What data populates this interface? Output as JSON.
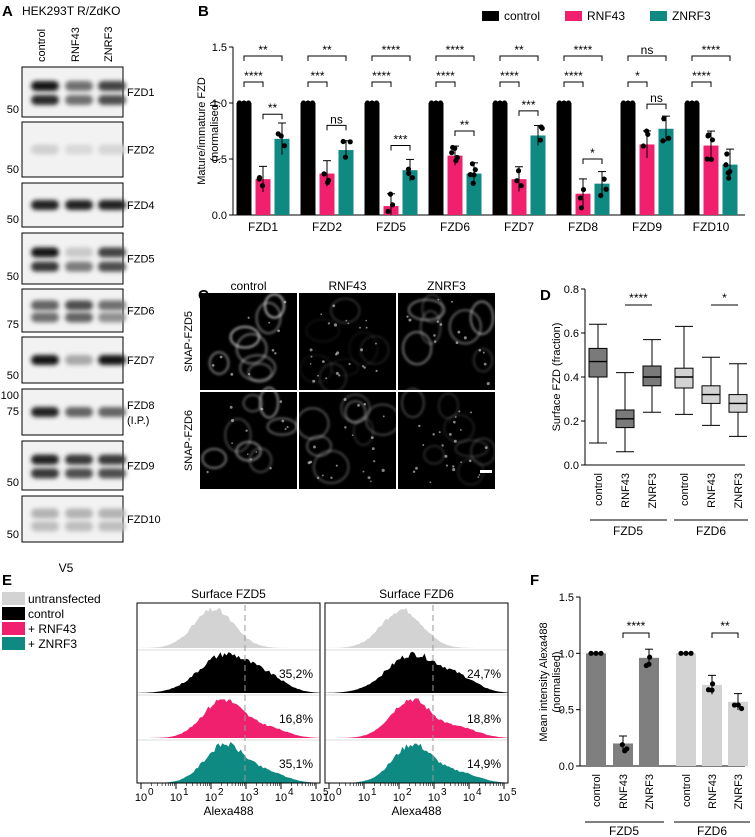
{
  "panel_letters": {
    "a": "A",
    "b": "B",
    "c": "C",
    "d": "D",
    "e": "E",
    "f": "F"
  },
  "panel_a": {
    "title": "HEK293T R/ZdKO",
    "lanes": [
      "control",
      "RNF43",
      "ZNRF3"
    ],
    "bottom_label": "V5",
    "blots": [
      {
        "label": "FZD1",
        "markers": [
          "50"
        ]
      },
      {
        "label": "FZD2",
        "markers": [
          "50"
        ]
      },
      {
        "label": "FZD4",
        "markers": [
          "50"
        ]
      },
      {
        "label": "FZD5",
        "markers": [
          "50"
        ]
      },
      {
        "label": "FZD6",
        "markers": [
          "75"
        ]
      },
      {
        "label": "FZD7",
        "markers": [
          "50"
        ]
      },
      {
        "label": "FZD8",
        "label2": "(I.P.)",
        "markers": [
          "100",
          "75"
        ]
      },
      {
        "label": "FZD9",
        "markers": [
          "50"
        ]
      },
      {
        "label": "FZD10",
        "markers": [
          "50"
        ]
      }
    ]
  },
  "chart_data": [
    {
      "panel": "B",
      "type": "bar",
      "ylabel": "Mature/immature FZD\n(normalised)",
      "ylim": [
        0,
        1.5
      ],
      "yticks": [
        "0.0",
        "0.5",
        "1.0",
        "1.5"
      ],
      "categories": [
        "FZD1",
        "FZD2",
        "FZD5",
        "FZD6",
        "FZD7",
        "FZD8",
        "FZD9",
        "FZD10"
      ],
      "series": [
        {
          "name": "control",
          "color": "#000000",
          "values": [
            1,
            1,
            1,
            1,
            1,
            1,
            1,
            1
          ]
        },
        {
          "name": "RNF43",
          "color": "#f0206e",
          "values": [
            0.32,
            0.37,
            0.08,
            0.53,
            0.32,
            0.19,
            0.63,
            0.62
          ]
        },
        {
          "name": "ZNRF3",
          "color": "#0f8a83",
          "values": [
            0.68,
            0.58,
            0.4,
            0.37,
            0.71,
            0.28,
            0.77,
            0.45
          ]
        }
      ],
      "legend": "top",
      "significance": [
        {
          "top": "**",
          "low": "****",
          "right": "**"
        },
        {
          "top": "**",
          "low": "***",
          "right": "ns"
        },
        {
          "top": "****",
          "low": "****",
          "right": "***"
        },
        {
          "top": "****",
          "low": "****",
          "right": "**"
        },
        {
          "top": "**",
          "low": "****",
          "right": "***"
        },
        {
          "top": "****",
          "low": "****",
          "right": "*"
        },
        {
          "top": "ns",
          "low": "*",
          "right": "ns"
        },
        {
          "top": "****",
          "low": "****",
          "right": ""
        }
      ]
    },
    {
      "panel": "D",
      "type": "box",
      "ylabel": "Surface FZD (fraction)",
      "ylim": [
        0,
        0.8
      ],
      "yticks": [
        "0.0",
        "0.2",
        "0.4",
        "0.6",
        "0.8"
      ],
      "categories": [
        "control",
        "RNF43",
        "ZNRF3",
        "control",
        "RNF43",
        "ZNRF3"
      ],
      "groups": [
        "FZD5",
        "FZD6"
      ],
      "boxes": [
        {
          "color": "#7a7a7a",
          "min": 0.1,
          "q1": 0.4,
          "median": 0.47,
          "q3": 0.53,
          "max": 0.64
        },
        {
          "color": "#7a7a7a",
          "min": 0.06,
          "q1": 0.17,
          "median": 0.21,
          "q3": 0.25,
          "max": 0.42
        },
        {
          "color": "#7a7a7a",
          "min": 0.24,
          "q1": 0.36,
          "median": 0.4,
          "q3": 0.45,
          "max": 0.57
        },
        {
          "color": "#d3d3d3",
          "min": 0.23,
          "q1": 0.35,
          "median": 0.4,
          "q3": 0.44,
          "max": 0.63
        },
        {
          "color": "#d3d3d3",
          "min": 0.18,
          "q1": 0.28,
          "median": 0.32,
          "q3": 0.36,
          "max": 0.49
        },
        {
          "color": "#d3d3d3",
          "min": 0.13,
          "q1": 0.24,
          "median": 0.28,
          "q3": 0.32,
          "max": 0.46
        }
      ],
      "significance": [
        {
          "from": 1,
          "to": 2,
          "label": "****"
        },
        {
          "from": 4,
          "to": 5,
          "label": "*"
        }
      ]
    },
    {
      "panel": "E",
      "type": "area",
      "xlabel": "Alexa488",
      "xticks": [
        "0",
        "1",
        "2",
        "3",
        "4",
        "5"
      ],
      "panels": [
        {
          "title": "Surface FZD5",
          "percents": [
            "35,2%",
            "16,8%",
            "35,1%"
          ]
        },
        {
          "title": "Surface FZD6",
          "percents": [
            "24,7%",
            "18,8%",
            "14,9%"
          ]
        }
      ],
      "legend": [
        {
          "name": "untransfected",
          "color": "#d3d3d3"
        },
        {
          "name": "control",
          "color": "#000000"
        },
        {
          "name": "+ RNF43",
          "color": "#f0206e"
        },
        {
          "name": "+ ZNRF3",
          "color": "#0f8a83"
        }
      ]
    },
    {
      "panel": "F",
      "type": "bar",
      "ylabel": "Mean intensity Alexa488\n(normalised)",
      "ylim": [
        0,
        1.5
      ],
      "yticks": [
        "0.0",
        "0.5",
        "1.0",
        "1.5"
      ],
      "categories": [
        "control",
        "RNF43",
        "ZNRF3",
        "control",
        "RNF43",
        "ZNRF3"
      ],
      "groups": [
        "FZD5",
        "FZD6"
      ],
      "values": [
        1.0,
        0.2,
        0.96,
        1.0,
        0.72,
        0.57
      ],
      "colors": [
        "#7f7f7f",
        "#7f7f7f",
        "#7f7f7f",
        "#d3d3d3",
        "#d3d3d3",
        "#d3d3d3"
      ],
      "significance": [
        {
          "from": 1,
          "to": 2,
          "label": "****"
        },
        {
          "from": 4,
          "to": 5,
          "label": "**"
        }
      ]
    }
  ],
  "panel_c": {
    "columns": [
      "control",
      "RNF43",
      "ZNRF3"
    ],
    "rows": [
      "SNAP-FZD5",
      "SNAP-FZD6"
    ]
  }
}
